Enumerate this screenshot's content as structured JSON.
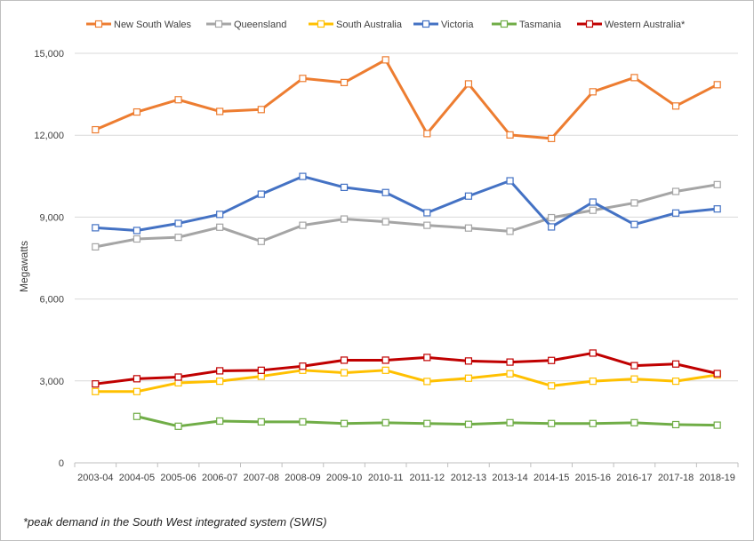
{
  "chart_data": {
    "type": "line",
    "title": "",
    "xlabel": "",
    "ylabel": "Megawatts",
    "ylim": [
      0,
      15000
    ],
    "yticks": [
      0,
      3000,
      6000,
      9000,
      12000,
      15000
    ],
    "ytick_labels": [
      "0",
      "3,000",
      "6,000",
      "9,000",
      "12,000",
      "15,000"
    ],
    "grid": "horizontal",
    "legend_position": "top",
    "categories": [
      "2003-04",
      "2004-05",
      "2005-06",
      "2006-07",
      "2007-08",
      "2008-09",
      "2009-10",
      "2010-11",
      "2011-12",
      "2012-13",
      "2013-14",
      "2014-15",
      "2015-16",
      "2016-17",
      "2017-18",
      "2018-19"
    ],
    "series": [
      {
        "name": "New South Wales",
        "color": "#ED7D31",
        "values": [
          12200,
          12850,
          13300,
          12870,
          12940,
          14080,
          13930,
          14760,
          12060,
          13880,
          12010,
          11880,
          13590,
          14110,
          13070,
          13850
        ]
      },
      {
        "name": "Queensland",
        "color": "#A5A5A5",
        "values": [
          7910,
          8200,
          8260,
          8630,
          8110,
          8700,
          8930,
          8830,
          8700,
          8600,
          8480,
          8980,
          9250,
          9520,
          9940,
          10190
        ]
      },
      {
        "name": "South Australia",
        "color": "#FFC000",
        "values": [
          2610,
          2610,
          2930,
          2990,
          3170,
          3390,
          3300,
          3390,
          2980,
          3100,
          3260,
          2820,
          2990,
          3070,
          2990,
          3220
        ]
      },
      {
        "name": "Victoria",
        "color": "#4472C4",
        "values": [
          8610,
          8510,
          8770,
          9100,
          9840,
          10490,
          10090,
          9900,
          9160,
          9770,
          10330,
          8640,
          9550,
          8730,
          9150,
          9300
        ]
      },
      {
        "name": "Tasmania",
        "color": "#70AD47",
        "values": [
          null,
          1700,
          1340,
          1530,
          1500,
          1500,
          1440,
          1470,
          1440,
          1410,
          1470,
          1440,
          1440,
          1470,
          1400,
          1380
        ]
      },
      {
        "name": "Western Australia*",
        "color": "#C00000",
        "values": [
          2890,
          3080,
          3140,
          3370,
          3390,
          3540,
          3760,
          3760,
          3860,
          3730,
          3690,
          3750,
          4020,
          3560,
          3620,
          3270
        ]
      }
    ]
  },
  "footnote": "*peak demand in the South West integrated system (SWIS)"
}
